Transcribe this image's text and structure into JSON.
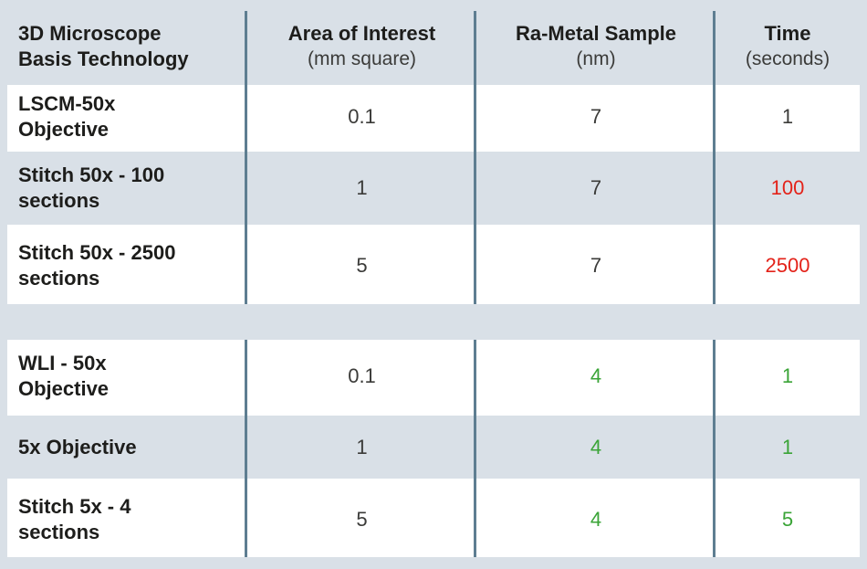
{
  "palette": {
    "page_bg": "#d9e0e7",
    "stripe_bg": "#d9e0e7",
    "ink": "#1d1d1b",
    "num_ink": "#3b3b39",
    "divider": "#5e7e91",
    "red": "#e32219",
    "green": "#3aa437"
  },
  "header": {
    "columns": [
      {
        "title": "3D Microscope\nBasis Technology",
        "subtitle": ""
      },
      {
        "title": "Area of Interest",
        "subtitle": "(mm square)"
      },
      {
        "title": "Ra-Metal Sample",
        "subtitle": "(nm)"
      },
      {
        "title": "Time",
        "subtitle": "(seconds)"
      }
    ]
  },
  "sections": [
    {
      "rows": [
        {
          "label": "LSCM-50x\nObjective",
          "area": "0.1",
          "ra": "7",
          "time": "1"
        },
        {
          "label": "Stitch 50x - 100\nsections",
          "area": "1",
          "ra": "7",
          "time": "100"
        },
        {
          "label": "Stitch 50x - 2500\nsections",
          "area": "5",
          "ra": "7",
          "time": "2500"
        }
      ]
    },
    {
      "rows": [
        {
          "label": "WLI - 50x\nObjective",
          "area": "0.1",
          "ra": "4",
          "time": "1"
        },
        {
          "label": "5x Objective",
          "area": "1",
          "ra": "4",
          "time": "1"
        },
        {
          "label": "Stitch 5x - 4\nsections",
          "area": "5",
          "ra": "4",
          "time": "5"
        }
      ]
    }
  ],
  "chart_data": {
    "type": "table",
    "columns": [
      "3D Microscope Basis Technology",
      "Area of Interest (mm square)",
      "Ra-Metal Sample (nm)",
      "Time (seconds)"
    ],
    "rows": [
      [
        "LSCM-50x Objective",
        0.1,
        7,
        1
      ],
      [
        "Stitch 50x - 100 sections",
        1,
        7,
        100
      ],
      [
        "Stitch 50x - 2500 sections",
        5,
        7,
        2500
      ],
      [
        "WLI - 50x Objective",
        0.1,
        4,
        1
      ],
      [
        "5x Objective",
        1,
        4,
        1
      ],
      [
        "Stitch 5x - 4 sections",
        5,
        4,
        5
      ]
    ],
    "cell_text_colors": {
      "ra_metal_column": [
        "black",
        "black",
        "black",
        "green",
        "green",
        "green"
      ],
      "time_column": [
        "black",
        "red",
        "red",
        "green",
        "green",
        "green"
      ]
    },
    "layout": "two row-groups separated by a blank band; alternating white/gray row stripes; steel-blue vertical column dividers"
  }
}
